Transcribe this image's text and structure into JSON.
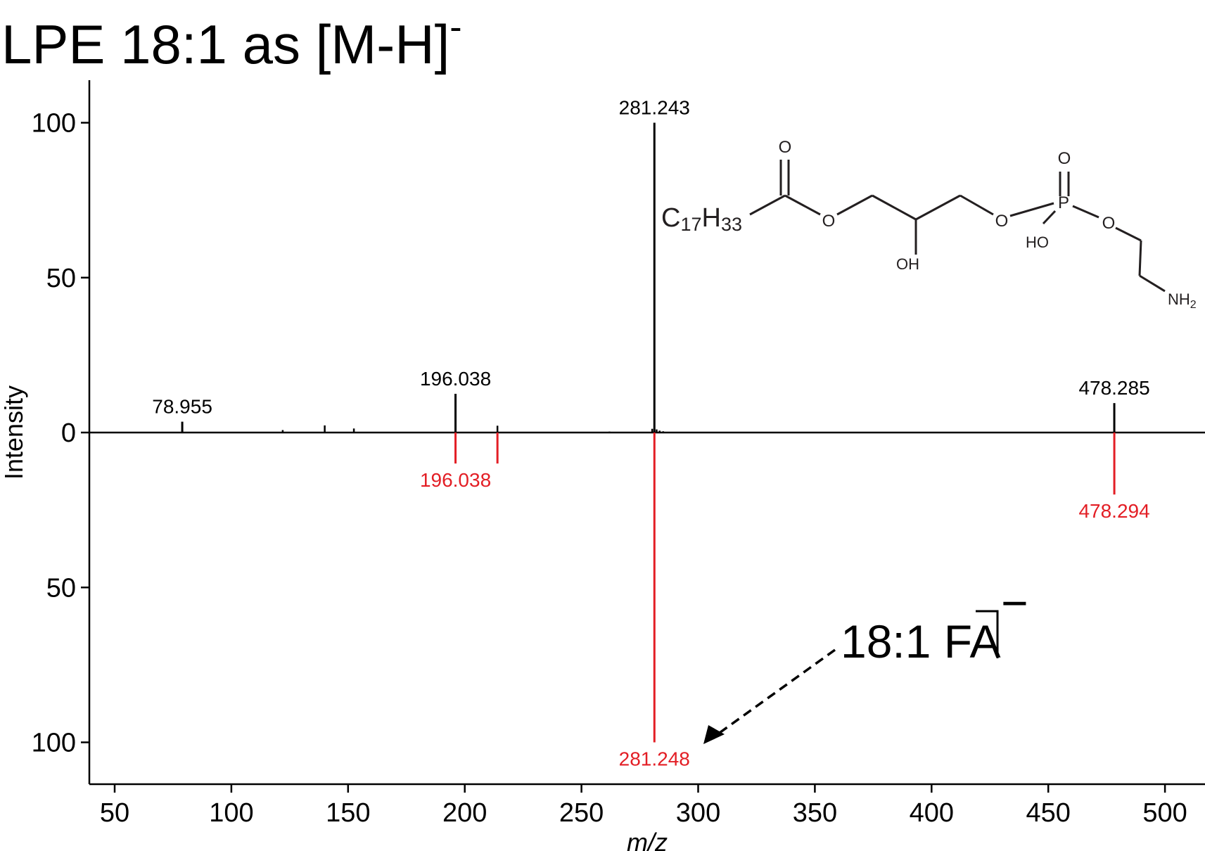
{
  "chart_data": {
    "type": "bar",
    "subtype": "mirror-spectrum",
    "title_main": "LPE 18:1 as [M-H]",
    "title_charge": "-",
    "xlabel": "m/z",
    "ylabel": "Intensity",
    "xlim": [
      40,
      520
    ],
    "ylim": [
      -112,
      112
    ],
    "x_ticks": [
      50,
      100,
      150,
      200,
      250,
      300,
      350,
      400,
      450,
      500
    ],
    "y_ticks": [
      {
        "value": 100,
        "label": "100"
      },
      {
        "value": 50,
        "label": "50"
      },
      {
        "value": 0,
        "label": "0"
      },
      {
        "value": -50,
        "label": "50"
      },
      {
        "value": -100,
        "label": "100"
      }
    ],
    "colors": {
      "experimental": "#000000",
      "reference": "#e31e25",
      "arrow": "#000000"
    },
    "series": [
      {
        "role": "experimental",
        "peaks": [
          {
            "mz": 78.955,
            "intensity": 3.5,
            "label": "78.955"
          },
          {
            "mz": 122.0,
            "intensity": 0.8
          },
          {
            "mz": 140.0,
            "intensity": 2.3
          },
          {
            "mz": 152.5,
            "intensity": 1.3
          },
          {
            "mz": 196.038,
            "intensity": 12.5,
            "label": "196.038"
          },
          {
            "mz": 214.0,
            "intensity": 2.2
          },
          {
            "mz": 262.0,
            "intensity": 0.3
          },
          {
            "mz": 280.3,
            "intensity": 1.2
          },
          {
            "mz": 281.243,
            "intensity": 100,
            "label": "281.243"
          },
          {
            "mz": 282.2,
            "intensity": 1.0
          },
          {
            "mz": 283.5,
            "intensity": 0.6
          },
          {
            "mz": 285.0,
            "intensity": 0.4
          },
          {
            "mz": 478.285,
            "intensity": 9.5,
            "label": "478.285"
          }
        ]
      },
      {
        "role": "reference",
        "peaks": [
          {
            "mz": 196.038,
            "intensity": 10,
            "label": "196.038"
          },
          {
            "mz": 214.0,
            "intensity": 10
          },
          {
            "mz": 281.248,
            "intensity": 100,
            "label": "281.248"
          },
          {
            "mz": 478.294,
            "intensity": 20,
            "label": "478.294"
          }
        ]
      }
    ],
    "annotations": [
      {
        "text": "18:1 FA",
        "charge": "−",
        "arrow_target_mz": 281.248
      }
    ],
    "structure_labels": {
      "chain": "C",
      "chain_sub1": "17",
      "chain_h": "H",
      "chain_sub2": "33",
      "carbonyl_o": "O",
      "ester_o": "O",
      "hydroxyl": "OH",
      "phosphate_o1": "O",
      "phosphorus": "P",
      "phosphate_o_double": "O",
      "phosphate_oh": "HO",
      "phosphate_o2": "O",
      "amine": "NH",
      "amine_sub": "2"
    }
  }
}
